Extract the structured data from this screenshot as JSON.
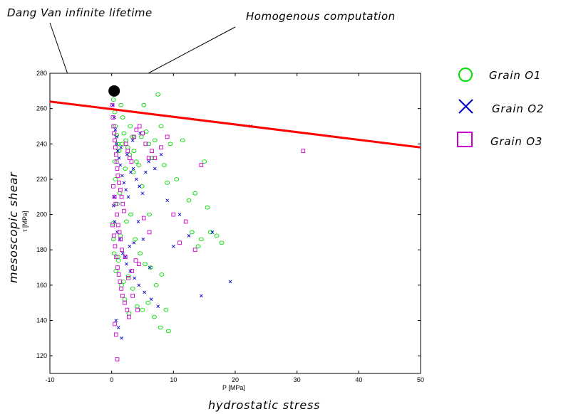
{
  "chart_data": {
    "type": "scatter",
    "xlabel": "P [MPa]",
    "ylabel": "τ [MPa]",
    "outer_xlabel": "hydrostatic stress",
    "outer_ylabel": "mesoscopic shear",
    "xlim": [
      -10,
      50
    ],
    "ylim": [
      110,
      280
    ],
    "xticks": [
      -10,
      0,
      10,
      20,
      30,
      40,
      50
    ],
    "yticks": [
      120,
      140,
      160,
      180,
      200,
      220,
      240,
      260,
      280
    ],
    "grid": false,
    "legend_position": "outside-right",
    "annotations": [
      {
        "text": "Dang Van infinite lifetime"
      },
      {
        "text": "Homogenous computation"
      }
    ],
    "lines": [
      {
        "name": "",
        "color": "#ff0000",
        "x": [
          -10,
          50
        ],
        "y": [
          264,
          238
        ]
      }
    ],
    "points": [
      {
        "name": "",
        "color": "#000000",
        "x": [
          0.4
        ],
        "y": [
          270
        ]
      }
    ],
    "series": [
      {
        "name": "Grain O1",
        "marker": "circle",
        "color": "#00dd00",
        "x": [
          0.3,
          0.5,
          0.6,
          0.8,
          1.0,
          1.2,
          1.5,
          1.8,
          2.0,
          2.3,
          2.6,
          3.0,
          3.3,
          3.6,
          4.0,
          4.4,
          4.8,
          5.2,
          5.6,
          6.0,
          6.5,
          7.0,
          7.5,
          8.0,
          8.5,
          9.0,
          9.5,
          10.5,
          11.5,
          12.5,
          13.0,
          13.5,
          14.0,
          14.5,
          15.0,
          15.5,
          16.0,
          17.0,
          17.8,
          0.4,
          0.7,
          1.1,
          1.6,
          2.1,
          2.7,
          3.4,
          4.1,
          5.0,
          5.9,
          6.9,
          7.9,
          8.8,
          9.2,
          0.2,
          0.9,
          1.4,
          2.4,
          3.1,
          3.8,
          4.6,
          5.4,
          6.3,
          7.2,
          8.1,
          0.6,
          1.3,
          2.2,
          3.5,
          4.9,
          6.1,
          0.5,
          1.7,
          2.9,
          3.6,
          0.3,
          1.0,
          1.9,
          2.8
        ],
        "y": [
          265,
          258,
          250,
          245,
          240,
          236,
          262,
          255,
          246,
          242,
          238,
          250,
          244,
          236,
          230,
          228,
          244,
          262,
          247,
          240,
          232,
          242,
          268,
          250,
          228,
          218,
          240,
          220,
          242,
          208,
          190,
          212,
          182,
          186,
          230,
          204,
          190,
          188,
          184,
          178,
          168,
          174,
          160,
          152,
          165,
          158,
          148,
          146,
          150,
          142,
          136,
          146,
          134,
          195,
          206,
          188,
          196,
          200,
          186,
          178,
          172,
          170,
          160,
          166,
          220,
          212,
          226,
          224,
          216,
          200,
          230,
          240,
          234,
          244,
          186,
          176,
          162,
          144
        ],
        "noise": true
      },
      {
        "name": "Grain O2",
        "marker": "x",
        "color": "#0000cc",
        "x": [
          0.2,
          0.4,
          0.6,
          0.8,
          1.0,
          1.2,
          1.4,
          1.7,
          2.0,
          2.3,
          2.7,
          3.1,
          3.5,
          4.0,
          4.5,
          5.0,
          5.5,
          6.0,
          7.0,
          8.0,
          9.0,
          10.0,
          11.0,
          12.5,
          14.5,
          16.3,
          19.2,
          22.5,
          0.3,
          0.5,
          0.9,
          1.3,
          1.8,
          2.4,
          3.0,
          3.7,
          4.4,
          5.3,
          6.4,
          7.5,
          0.7,
          1.1,
          1.6,
          2.2,
          2.9,
          3.6,
          4.3,
          5.1,
          6.2,
          0.4,
          0.8,
          1.5,
          2.5,
          3.4,
          4.6
        ],
        "y": [
          262,
          255,
          248,
          240,
          236,
          232,
          228,
          222,
          218,
          214,
          210,
          224,
          226,
          220,
          216,
          212,
          224,
          230,
          226,
          234,
          208,
          182,
          200,
          188,
          154,
          190,
          162,
          250,
          205,
          196,
          190,
          186,
          178,
          172,
          168,
          164,
          160,
          156,
          152,
          148,
          140,
          136,
          130,
          176,
          182,
          184,
          196,
          186,
          170,
          210,
          244,
          238,
          234,
          242,
          246
        ]
      },
      {
        "name": "Grain O3",
        "marker": "square",
        "color": "#cc00cc",
        "x": [
          0.1,
          0.2,
          0.3,
          0.4,
          0.5,
          0.6,
          0.7,
          0.8,
          0.9,
          1.0,
          1.2,
          1.4,
          1.6,
          1.8,
          2.0,
          2.3,
          2.6,
          2.9,
          3.2,
          3.6,
          4.0,
          4.5,
          5.0,
          5.5,
          6.0,
          6.5,
          7.0,
          8.0,
          9.0,
          10.0,
          11.0,
          12.0,
          13.5,
          14.5,
          31.0,
          0.15,
          0.35,
          0.55,
          0.75,
          0.95,
          1.15,
          1.35,
          1.55,
          1.75,
          2.1,
          2.5,
          2.8,
          3.3,
          3.9,
          4.4,
          5.2,
          6.1,
          0.25,
          0.45,
          0.65,
          0.85,
          1.05,
          1.25,
          1.45,
          1.65,
          2.2,
          2.7,
          3.4,
          4.2,
          0.5,
          0.7,
          0.9
        ],
        "y": [
          262,
          255,
          250,
          246,
          242,
          238,
          234,
          230,
          226,
          222,
          218,
          214,
          210,
          206,
          202,
          240,
          236,
          232,
          230,
          244,
          248,
          250,
          246,
          240,
          232,
          236,
          232,
          238,
          244,
          200,
          184,
          196,
          180,
          228,
          236,
          194,
          188,
          182,
          176,
          170,
          166,
          162,
          158,
          154,
          150,
          146,
          142,
          168,
          174,
          172,
          198,
          190,
          216,
          210,
          206,
          200,
          194,
          190,
          186,
          180,
          176,
          164,
          154,
          146,
          138,
          132,
          118
        ]
      }
    ]
  }
}
